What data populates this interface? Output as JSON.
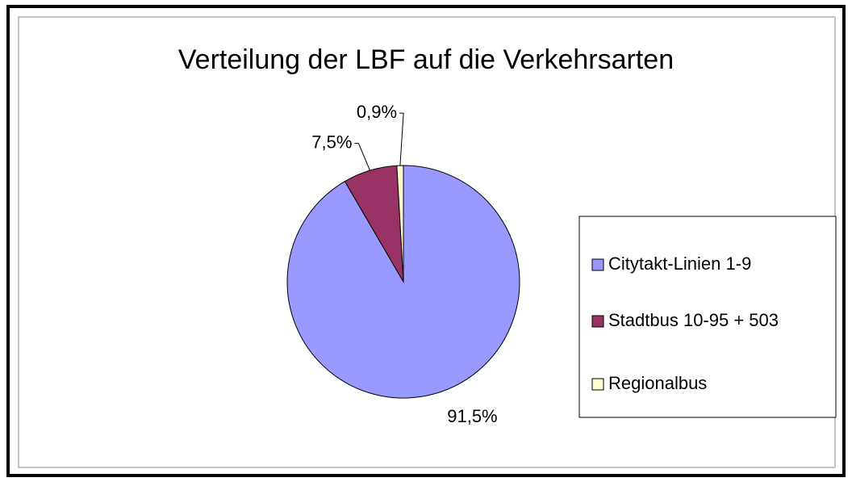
{
  "chart_data": {
    "type": "pie",
    "title": "Verteilung der LBF auf die Verkehrsarten",
    "categories": [
      "Citytakt-Linien 1-9",
      "Stadtbus 10-95 + 503",
      "Regionalbus"
    ],
    "values": [
      91.5,
      7.5,
      0.9
    ],
    "value_labels": [
      "91,5%",
      "7,5%",
      "0,9%"
    ],
    "colors": [
      "#9999ff",
      "#993366",
      "#ffffcc"
    ],
    "legend": "right"
  }
}
